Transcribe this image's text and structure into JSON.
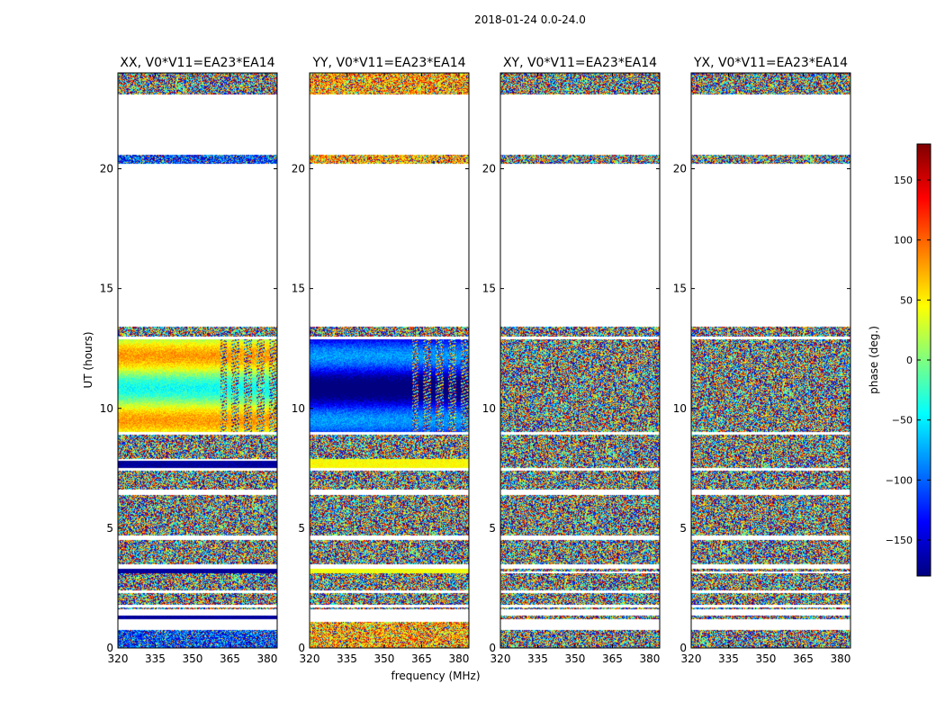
{
  "figure": {
    "suptitle": "2018-01-24 0.0-24.0",
    "xlabel": "frequency (MHz)",
    "ylabel": "UT (hours)"
  },
  "colorbar": {
    "label": "phase (deg.)",
    "range": [
      -180,
      180
    ],
    "ticks": [
      -150,
      -100,
      -50,
      0,
      50,
      100,
      150
    ],
    "tick_labels": [
      "−150",
      "−100",
      "−50",
      "0",
      "50",
      "100",
      "150"
    ],
    "colormap": [
      "#00007f",
      "#0000ff",
      "#007fff",
      "#00ffff",
      "#7fff7f",
      "#ffff00",
      "#ff7f00",
      "#ff0000",
      "#7f0000"
    ]
  },
  "chart_data": [
    {
      "type": "heatmap",
      "title": "XX, V0*V11=EA23*EA14",
      "x_ticks": [
        320,
        335,
        350,
        365,
        380
      ],
      "x_tick_labels": [
        "320",
        "335",
        "350",
        "365",
        "380"
      ],
      "xlim": [
        320,
        384
      ],
      "y_ticks": [
        0,
        5,
        10,
        15,
        20
      ],
      "y_tick_labels": [
        "0",
        "5",
        "10",
        "15",
        "20"
      ],
      "ylim": [
        0,
        24
      ],
      "z_label": "phase (deg.)",
      "bands": [
        {
          "t0": 0.0,
          "t1": 0.75,
          "mode": "noise-cool"
        },
        {
          "t0": 1.2,
          "t1": 1.35,
          "mode": "solid",
          "phase": -170
        },
        {
          "t0": 1.6,
          "t1": 1.7,
          "mode": "noise"
        },
        {
          "t0": 1.8,
          "t1": 2.3,
          "mode": "noise"
        },
        {
          "t0": 2.4,
          "t1": 3.1,
          "mode": "noise"
        },
        {
          "t0": 3.1,
          "t1": 3.3,
          "mode": "solid",
          "phase": -170
        },
        {
          "t0": 3.5,
          "t1": 4.5,
          "mode": "noise"
        },
        {
          "t0": 4.7,
          "t1": 6.4,
          "mode": "noise"
        },
        {
          "t0": 6.6,
          "t1": 7.4,
          "mode": "noise"
        },
        {
          "t0": 7.5,
          "t1": 7.8,
          "mode": "solid",
          "phase": -170
        },
        {
          "t0": 7.9,
          "t1": 8.9,
          "mode": "noise"
        },
        {
          "t0": 9.0,
          "t1": 12.9,
          "mode": "smooth",
          "phase": 20
        },
        {
          "t0": 13.0,
          "t1": 13.4,
          "mode": "noise"
        },
        {
          "t0": 20.2,
          "t1": 20.6,
          "mode": "noise-cool"
        },
        {
          "t0": 23.1,
          "t1": 24.0,
          "mode": "noise"
        }
      ]
    },
    {
      "type": "heatmap",
      "title": "YY, V0*V11=EA23*EA14",
      "x_ticks": [
        320,
        335,
        350,
        365,
        380
      ],
      "x_tick_labels": [
        "320",
        "335",
        "350",
        "365",
        "380"
      ],
      "xlim": [
        320,
        384
      ],
      "y_ticks": [
        0,
        5,
        10,
        15,
        20
      ],
      "y_tick_labels": [
        "0",
        "5",
        "10",
        "15",
        "20"
      ],
      "ylim": [
        0,
        24
      ],
      "z_label": "phase (deg.)",
      "bands": [
        {
          "t0": 0.0,
          "t1": 1.1,
          "mode": "noise-warm"
        },
        {
          "t0": 1.6,
          "t1": 1.7,
          "mode": "noise"
        },
        {
          "t0": 1.8,
          "t1": 2.3,
          "mode": "noise"
        },
        {
          "t0": 2.4,
          "t1": 3.1,
          "mode": "noise"
        },
        {
          "t0": 3.1,
          "t1": 3.3,
          "mode": "solid",
          "phase": 40
        },
        {
          "t0": 3.5,
          "t1": 4.5,
          "mode": "noise"
        },
        {
          "t0": 4.7,
          "t1": 6.4,
          "mode": "noise"
        },
        {
          "t0": 6.6,
          "t1": 7.4,
          "mode": "noise"
        },
        {
          "t0": 7.5,
          "t1": 7.9,
          "mode": "solid",
          "phase": 45
        },
        {
          "t0": 7.9,
          "t1": 8.9,
          "mode": "noise"
        },
        {
          "t0": 9.0,
          "t1": 12.9,
          "mode": "smooth",
          "phase": -140
        },
        {
          "t0": 13.0,
          "t1": 13.4,
          "mode": "noise"
        },
        {
          "t0": 20.2,
          "t1": 20.6,
          "mode": "noise-warm"
        },
        {
          "t0": 23.1,
          "t1": 24.0,
          "mode": "noise-warm"
        }
      ]
    },
    {
      "type": "heatmap",
      "title": "XY, V0*V11=EA23*EA14",
      "x_ticks": [
        320,
        335,
        350,
        365,
        380
      ],
      "x_tick_labels": [
        "320",
        "335",
        "350",
        "365",
        "380"
      ],
      "xlim": [
        320,
        384
      ],
      "y_ticks": [
        0,
        5,
        10,
        15,
        20
      ],
      "y_tick_labels": [
        "0",
        "5",
        "10",
        "15",
        "20"
      ],
      "ylim": [
        0,
        24
      ],
      "z_label": "phase (deg.)",
      "bands": [
        {
          "t0": 0.0,
          "t1": 0.75,
          "mode": "noise"
        },
        {
          "t0": 1.2,
          "t1": 1.35,
          "mode": "noise"
        },
        {
          "t0": 1.6,
          "t1": 1.7,
          "mode": "noise"
        },
        {
          "t0": 1.8,
          "t1": 2.3,
          "mode": "noise"
        },
        {
          "t0": 2.4,
          "t1": 3.1,
          "mode": "noise"
        },
        {
          "t0": 3.2,
          "t1": 3.3,
          "mode": "noise"
        },
        {
          "t0": 3.5,
          "t1": 4.5,
          "mode": "noise"
        },
        {
          "t0": 4.7,
          "t1": 6.4,
          "mode": "noise"
        },
        {
          "t0": 6.6,
          "t1": 7.4,
          "mode": "noise"
        },
        {
          "t0": 7.5,
          "t1": 8.9,
          "mode": "noise"
        },
        {
          "t0": 9.0,
          "t1": 12.9,
          "mode": "noise"
        },
        {
          "t0": 13.0,
          "t1": 13.4,
          "mode": "noise"
        },
        {
          "t0": 20.2,
          "t1": 20.6,
          "mode": "noise"
        },
        {
          "t0": 23.1,
          "t1": 24.0,
          "mode": "noise"
        }
      ]
    },
    {
      "type": "heatmap",
      "title": "YX, V0*V11=EA23*EA14",
      "x_ticks": [
        320,
        335,
        350,
        365,
        380
      ],
      "x_tick_labels": [
        "320",
        "335",
        "350",
        "365",
        "380"
      ],
      "xlim": [
        320,
        384
      ],
      "y_ticks": [
        0,
        5,
        10,
        15,
        20
      ],
      "y_tick_labels": [
        "0",
        "5",
        "10",
        "15",
        "20"
      ],
      "ylim": [
        0,
        24
      ],
      "z_label": "phase (deg.)",
      "bands": [
        {
          "t0": 0.0,
          "t1": 0.75,
          "mode": "noise"
        },
        {
          "t0": 1.2,
          "t1": 1.35,
          "mode": "noise"
        },
        {
          "t0": 1.6,
          "t1": 1.7,
          "mode": "noise"
        },
        {
          "t0": 1.8,
          "t1": 2.3,
          "mode": "noise"
        },
        {
          "t0": 2.4,
          "t1": 3.1,
          "mode": "noise"
        },
        {
          "t0": 3.2,
          "t1": 3.3,
          "mode": "noise"
        },
        {
          "t0": 3.5,
          "t1": 4.5,
          "mode": "noise"
        },
        {
          "t0": 4.7,
          "t1": 6.4,
          "mode": "noise"
        },
        {
          "t0": 6.6,
          "t1": 7.4,
          "mode": "noise"
        },
        {
          "t0": 7.5,
          "t1": 8.9,
          "mode": "noise"
        },
        {
          "t0": 9.0,
          "t1": 12.9,
          "mode": "noise"
        },
        {
          "t0": 13.0,
          "t1": 13.4,
          "mode": "noise"
        },
        {
          "t0": 20.2,
          "t1": 20.6,
          "mode": "noise"
        },
        {
          "t0": 23.1,
          "t1": 24.0,
          "mode": "noise"
        }
      ]
    }
  ]
}
